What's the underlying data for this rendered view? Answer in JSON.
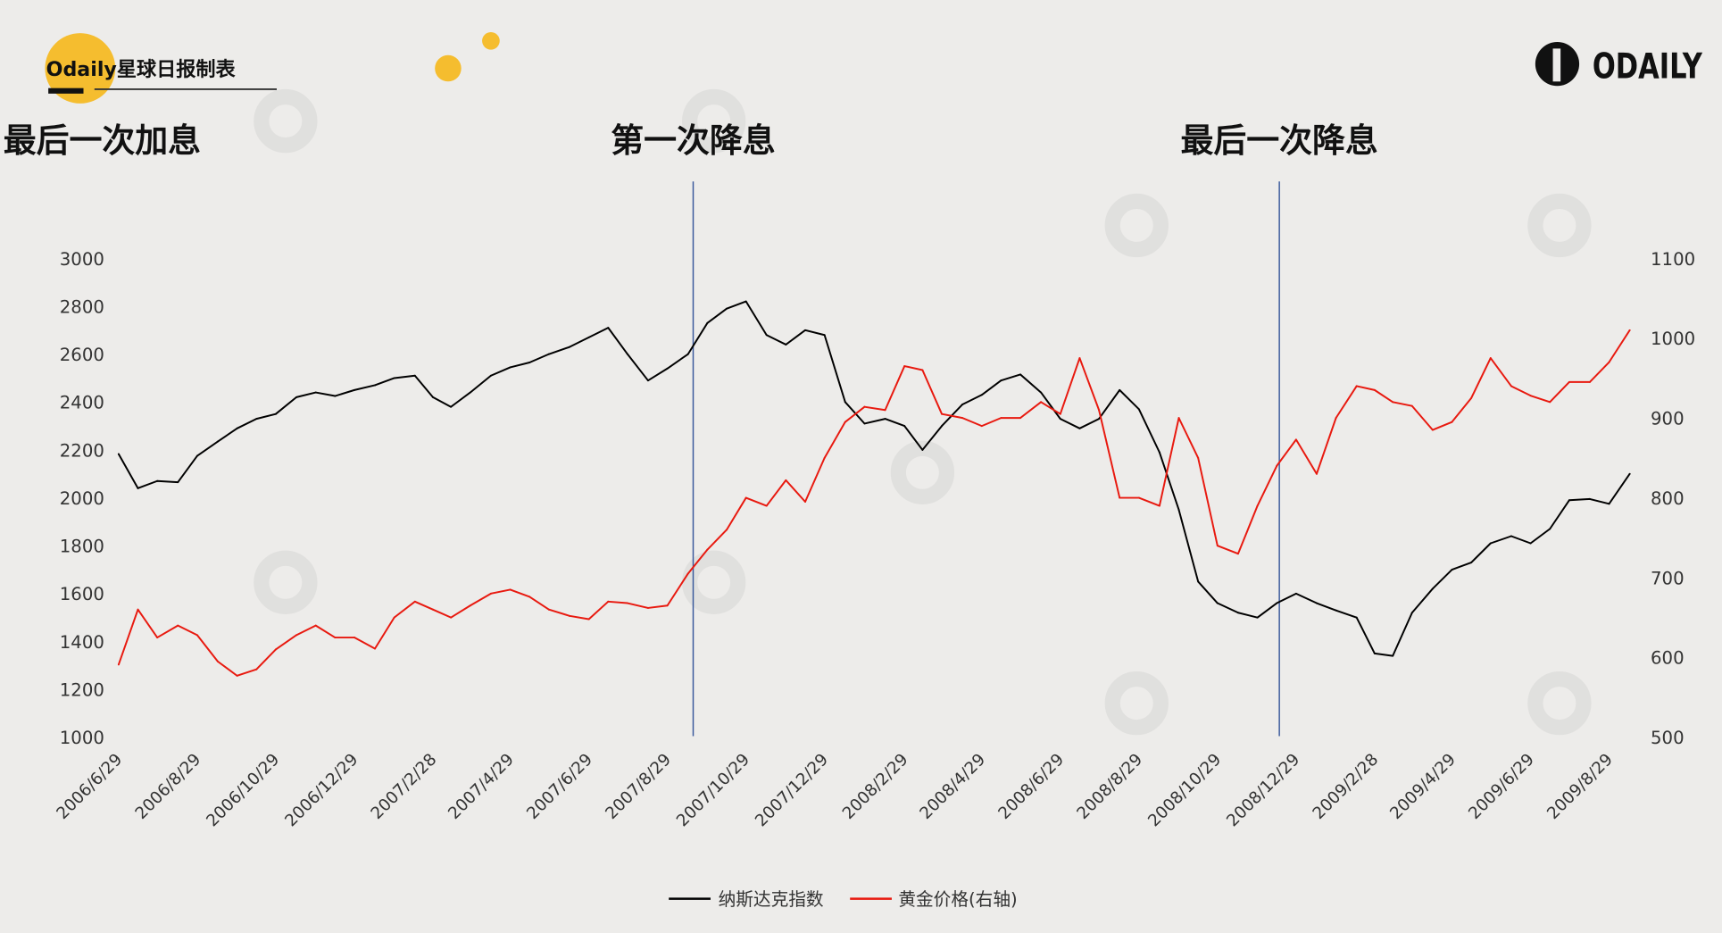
{
  "header": {
    "brand_title": "Odaily星球日报制表",
    "logo_text": "ODAILY"
  },
  "colors": {
    "background": "#edecea",
    "accent_yellow": "#f5bd2f",
    "nasdaq": "#000000",
    "gold": "#e8190f",
    "event_line": "#3a5a9c"
  },
  "chart_data": {
    "type": "line",
    "title": "",
    "xlabel": "",
    "ylabel_left": "",
    "ylabel_right": "",
    "grid": false,
    "legend_position": "bottom",
    "x_tick_labels": [
      "2006/6/29",
      "2006/8/29",
      "2006/10/29",
      "2006/12/29",
      "2007/2/28",
      "2007/4/29",
      "2007/6/29",
      "2007/8/29",
      "2007/10/29",
      "2007/12/29",
      "2008/2/29",
      "2008/4/29",
      "2008/6/29",
      "2008/8/29",
      "2008/10/29",
      "2008/12/29",
      "2009/2/28",
      "2009/4/29",
      "2009/6/29",
      "2009/8/29"
    ],
    "y_left": {
      "range": [
        1000,
        3000
      ],
      "ticks": [
        1000,
        1200,
        1400,
        1600,
        1800,
        2000,
        2200,
        2400,
        2600,
        2800,
        3000
      ]
    },
    "y_right": {
      "range": [
        500,
        1100
      ],
      "ticks": [
        500,
        600,
        700,
        800,
        900,
        1000,
        1100
      ]
    },
    "annotations": [
      {
        "label": "最后一次加息",
        "date": "2006/6/29",
        "line": false
      },
      {
        "label": "第一次降息",
        "date": "2007/9/18",
        "line": true
      },
      {
        "label": "最后一次降息",
        "date": "2008/12/16",
        "line": true
      }
    ],
    "x": [
      "2006/6/29",
      "2006/7/14",
      "2006/7/29",
      "2006/8/14",
      "2006/8/29",
      "2006/9/14",
      "2006/9/29",
      "2006/10/14",
      "2006/10/29",
      "2006/11/14",
      "2006/11/29",
      "2006/12/14",
      "2006/12/29",
      "2007/1/14",
      "2007/1/29",
      "2007/2/14",
      "2007/2/28",
      "2007/3/14",
      "2007/3/29",
      "2007/4/14",
      "2007/4/29",
      "2007/5/14",
      "2007/5/29",
      "2007/6/14",
      "2007/6/29",
      "2007/7/14",
      "2007/7/29",
      "2007/8/14",
      "2007/8/29",
      "2007/9/14",
      "2007/9/29",
      "2007/10/14",
      "2007/10/29",
      "2007/11/14",
      "2007/11/29",
      "2007/12/14",
      "2007/12/29",
      "2008/1/14",
      "2008/1/29",
      "2008/2/14",
      "2008/2/29",
      "2008/3/14",
      "2008/3/29",
      "2008/4/14",
      "2008/4/29",
      "2008/5/14",
      "2008/5/29",
      "2008/6/14",
      "2008/6/29",
      "2008/7/14",
      "2008/7/29",
      "2008/8/14",
      "2008/8/29",
      "2008/9/14",
      "2008/9/29",
      "2008/10/14",
      "2008/10/29",
      "2008/11/14",
      "2008/11/29",
      "2008/12/14",
      "2008/12/29",
      "2009/1/14",
      "2009/1/29",
      "2009/2/14",
      "2009/2/28",
      "2009/3/14",
      "2009/3/29",
      "2009/4/14",
      "2009/4/29",
      "2009/5/14",
      "2009/5/29",
      "2009/6/14",
      "2009/6/29",
      "2009/7/14",
      "2009/7/29",
      "2009/8/14",
      "2009/8/29",
      "2009/9/14"
    ],
    "series": [
      {
        "name": "纳斯达克指数",
        "axis": "left",
        "color": "#000000",
        "values": [
          2183,
          2040,
          2070,
          2065,
          2175,
          2235,
          2290,
          2330,
          2350,
          2420,
          2440,
          2425,
          2450,
          2470,
          2500,
          2510,
          2420,
          2380,
          2440,
          2510,
          2545,
          2565,
          2600,
          2630,
          2670,
          2710,
          2600,
          2490,
          2540,
          2600,
          2730,
          2790,
          2820,
          2680,
          2640,
          2700,
          2680,
          2400,
          2310,
          2330,
          2300,
          2200,
          2300,
          2390,
          2430,
          2490,
          2515,
          2440,
          2330,
          2290,
          2330,
          2450,
          2370,
          2190,
          1950,
          1650,
          1560,
          1520,
          1500,
          1560,
          1600,
          1560,
          1530,
          1500,
          1350,
          1340,
          1520,
          1620,
          1700,
          1730,
          1810,
          1840,
          1810,
          1870,
          1990,
          1995,
          1975,
          2100
        ]
      },
      {
        "name": "黄金价格(右轴)",
        "axis": "right",
        "color": "#e8190f",
        "values": [
          591,
          660,
          625,
          640,
          628,
          595,
          577,
          585,
          610,
          628,
          640,
          625,
          625,
          611,
          650,
          670,
          660,
          650,
          665,
          680,
          685,
          676,
          660,
          652,
          648,
          670,
          668,
          662,
          665,
          705,
          735,
          760,
          800,
          790,
          822,
          795,
          850,
          895,
          914,
          910,
          965,
          960,
          905,
          900,
          890,
          900,
          900,
          920,
          905,
          975,
          910,
          800,
          800,
          790,
          900,
          850,
          740,
          730,
          790,
          840,
          873,
          830,
          900,
          940,
          935,
          920,
          915,
          885,
          895,
          925,
          975,
          940,
          928,
          920,
          945,
          945,
          970,
          1010
        ]
      }
    ]
  }
}
